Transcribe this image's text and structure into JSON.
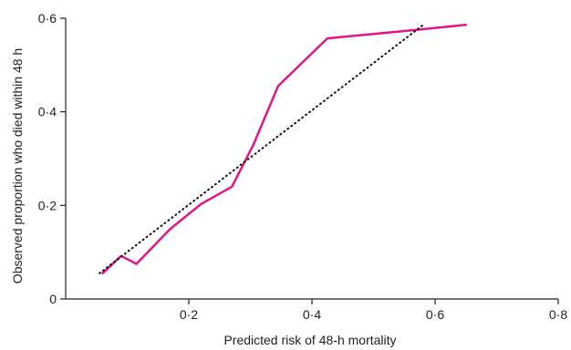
{
  "chart_data": {
    "type": "line",
    "xlabel": "Predicted risk of 48-h mortality",
    "ylabel": "Observed proportion who died within 48 h",
    "xlim": [
      0,
      0.8
    ],
    "ylim": [
      0,
      0.6
    ],
    "x_ticks": [
      "0·2",
      "0·4",
      "0·6",
      "0·8"
    ],
    "y_ticks": [
      "0",
      "0·2",
      "0·4",
      "0·6"
    ],
    "grid": false,
    "colors": {
      "series": "#e0158a",
      "reference": "#111111",
      "axis": "#222222"
    },
    "series": [
      {
        "style": "solid",
        "x": [
          0.06,
          0.09,
          0.115,
          0.17,
          0.22,
          0.27,
          0.305,
          0.345,
          0.425,
          0.57,
          0.65
        ],
        "y": [
          0.055,
          0.092,
          0.075,
          0.15,
          0.203,
          0.24,
          0.33,
          0.455,
          0.557,
          0.575,
          0.586
        ]
      },
      {
        "style": "dotted",
        "x": [
          0.055,
          0.58
        ],
        "y": [
          0.055,
          0.585
        ]
      }
    ]
  }
}
